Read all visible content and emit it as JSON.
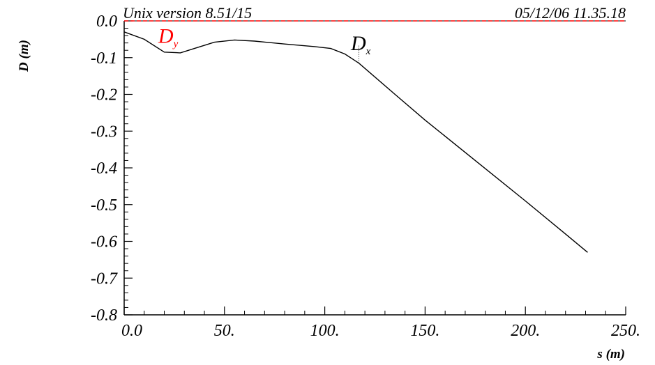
{
  "header": {
    "left": "Unix version 8.51/15",
    "right": "05/12/06  11.35.18"
  },
  "chart_data": {
    "type": "line",
    "xlabel": "s (m)",
    "ylabel": "D (m)",
    "xlim": [
      0,
      250
    ],
    "ylim": [
      -0.8,
      0.0
    ],
    "x_ticks": [
      0,
      50,
      100,
      150,
      200,
      250
    ],
    "x_tick_labels": [
      "0.0",
      "50.",
      "100.",
      "150.",
      "200.",
      "250."
    ],
    "y_ticks": [
      0.0,
      -0.1,
      -0.2,
      -0.3,
      -0.4,
      -0.5,
      -0.6,
      -0.7,
      -0.8
    ],
    "y_tick_labels": [
      "0.0",
      "-0.1",
      "-0.2",
      "-0.3",
      "-0.4",
      "-0.5",
      "-0.6",
      "-0.7",
      "-0.8"
    ],
    "grid": false,
    "series": [
      {
        "name": "Dx",
        "label_main": "D",
        "label_sub": "x",
        "color": "#000000",
        "label_at": [
          113,
          -0.08
        ],
        "points": [
          [
            0,
            -0.03
          ],
          [
            10,
            -0.05
          ],
          [
            20,
            -0.085
          ],
          [
            28,
            -0.087
          ],
          [
            35,
            -0.075
          ],
          [
            45,
            -0.058
          ],
          [
            55,
            -0.052
          ],
          [
            65,
            -0.055
          ],
          [
            80,
            -0.063
          ],
          [
            95,
            -0.07
          ],
          [
            103,
            -0.075
          ],
          [
            110,
            -0.09
          ],
          [
            117,
            -0.115
          ],
          [
            135,
            -0.2
          ],
          [
            150,
            -0.27
          ],
          [
            175,
            -0.38
          ],
          [
            200,
            -0.49
          ],
          [
            220,
            -0.58
          ],
          [
            231,
            -0.63
          ]
        ]
      },
      {
        "name": "Dy",
        "label_main": "D",
        "label_sub": "y",
        "color": "#ff0000",
        "dashed": true,
        "label_at": [
          17,
          -0.06
        ],
        "points": [
          [
            0,
            0.0
          ],
          [
            250,
            0.0
          ]
        ]
      }
    ],
    "marker_line": {
      "x": 117,
      "y_from": -0.115,
      "y_to": -0.065
    }
  }
}
